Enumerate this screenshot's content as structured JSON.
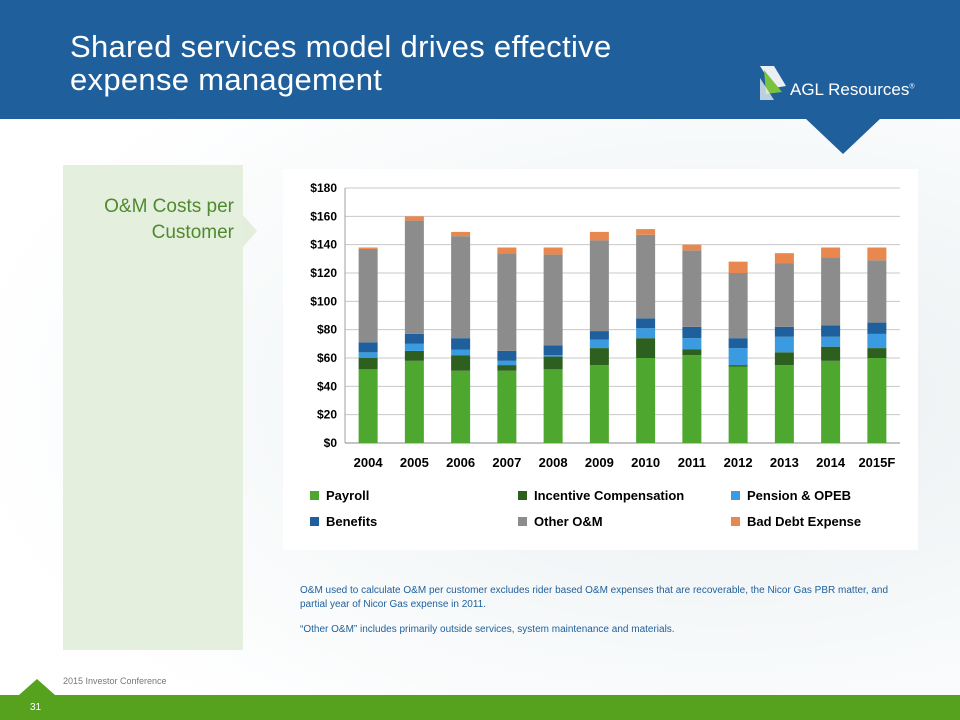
{
  "slide": {
    "title_line1": "Shared services model drives effective",
    "title_line2": "expense management",
    "logo_text": "AGL Resources",
    "logo_mark": "®",
    "section_label_line1": "O&M Costs per",
    "section_label_line2": "Customer",
    "note1": "O&M used to calculate O&M per customer excludes rider based O&M expenses that are recoverable, the Nicor Gas PBR matter, and partial year of Nicor Gas expense in 2011.",
    "note2": "“Other O&M” includes primarily outside services, system maintenance and materials.",
    "footer": "2015 Investor Conference",
    "page_number": "31"
  },
  "chart_data": {
    "type": "bar",
    "stacked": true,
    "title": "O&M Costs per Customer",
    "categories": [
      "2004",
      "2005",
      "2006",
      "2007",
      "2008",
      "2009",
      "2010",
      "2011",
      "2012",
      "2013",
      "2014",
      "2015F"
    ],
    "ylim": [
      0,
      180
    ],
    "yticks": [
      0,
      20,
      40,
      60,
      80,
      100,
      120,
      140,
      160,
      180
    ],
    "ytick_labels": [
      "$0",
      "$20",
      "$40",
      "$60",
      "$80",
      "$100",
      "$120",
      "$140",
      "$160",
      "$180"
    ],
    "grid": true,
    "legend_position": "bottom",
    "series": [
      {
        "name": "Payroll",
        "color": "#4ea72e",
        "values": [
          52,
          58,
          51,
          51,
          52,
          55,
          60,
          62,
          54,
          55,
          58,
          60
        ]
      },
      {
        "name": "Incentive Compensation",
        "color": "#2d5f1f",
        "values": [
          8,
          7,
          11,
          4,
          9,
          12,
          14,
          4,
          1,
          9,
          10,
          7
        ]
      },
      {
        "name": "Pension & OPEB",
        "color": "#3b9be0",
        "values": [
          4,
          5,
          4,
          3,
          1,
          6,
          7,
          8,
          12,
          11,
          7,
          10
        ]
      },
      {
        "name": "Benefits",
        "color": "#1f5f9c",
        "values": [
          7,
          7,
          8,
          7,
          7,
          6,
          7,
          8,
          7,
          7,
          8,
          8
        ]
      },
      {
        "name": "Other O&M",
        "color": "#8c8c8c",
        "values": [
          66,
          80,
          72,
          69,
          64,
          64,
          59,
          54,
          46,
          45,
          48,
          44
        ]
      },
      {
        "name": "Bad Debt Expense",
        "color": "#e8884f",
        "values": [
          1,
          3,
          3,
          4,
          5,
          6,
          4,
          4,
          8,
          7,
          7,
          9
        ]
      }
    ]
  }
}
